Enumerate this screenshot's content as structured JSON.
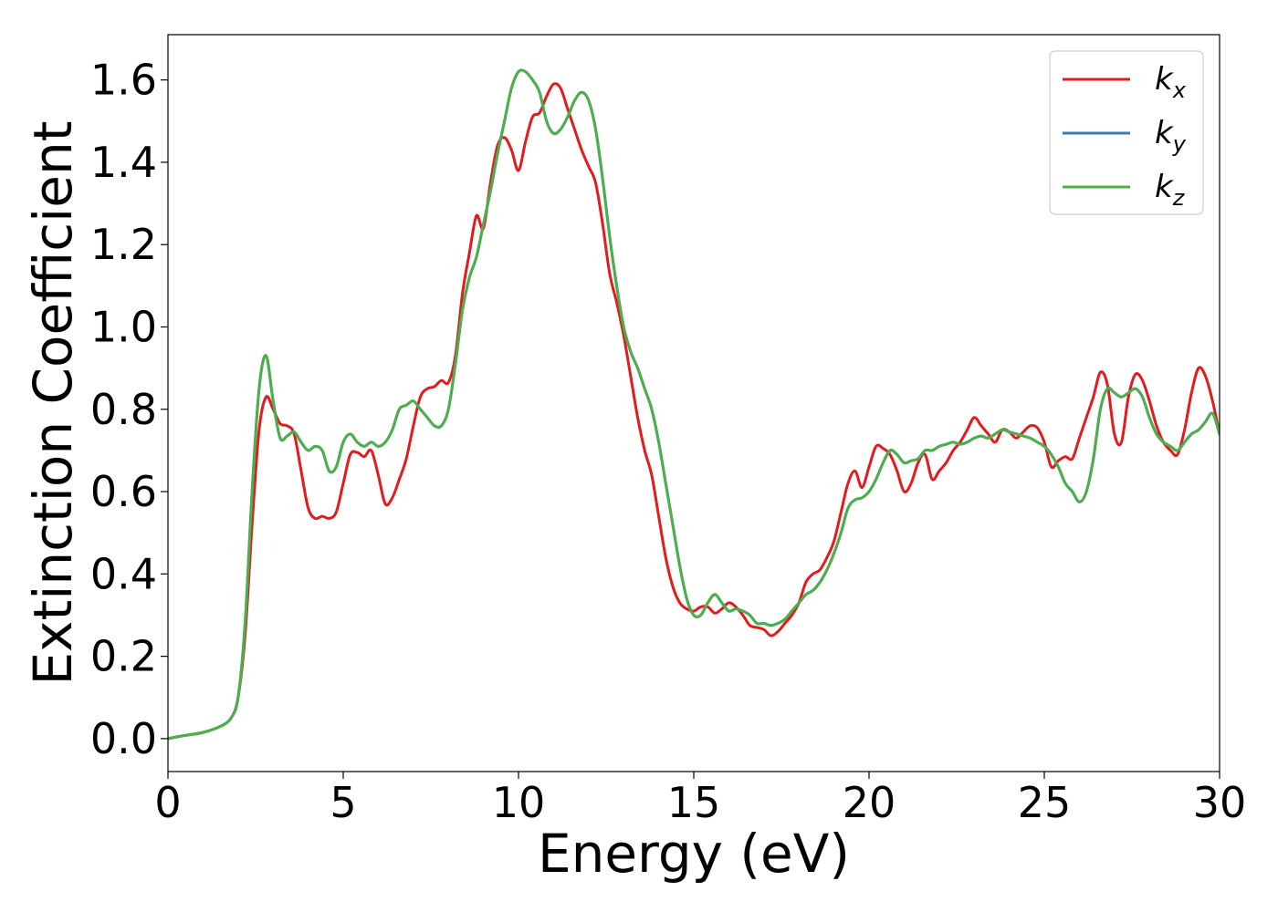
{
  "chart_data": {
    "type": "line",
    "xlabel": "Energy (eV)",
    "ylabel": "Extinction Coefficient",
    "xlim": [
      0,
      30
    ],
    "ylim": [
      -0.08,
      1.71
    ],
    "xticks": [
      0,
      5,
      10,
      15,
      20,
      25,
      30
    ],
    "yticks": [
      0.0,
      0.2,
      0.4,
      0.6,
      0.8,
      1.0,
      1.2,
      1.4,
      1.6
    ],
    "xtick_labels": [
      "0",
      "5",
      "10",
      "15",
      "20",
      "25",
      "30"
    ],
    "ytick_labels": [
      "0.0",
      "0.2",
      "0.4",
      "0.6",
      "0.8",
      "1.0",
      "1.2",
      "1.4",
      "1.6"
    ],
    "grid": false,
    "legend_position": "top-right",
    "series": [
      {
        "name": "k_x",
        "label_base": "k",
        "label_sub": "x",
        "color": "#e41a1c",
        "x": [
          0,
          0.5,
          1,
          1.5,
          1.8,
          2,
          2.2,
          2.4,
          2.6,
          2.8,
          3.0,
          3.2,
          3.4,
          3.6,
          3.8,
          4.0,
          4.2,
          4.4,
          4.6,
          4.8,
          5.0,
          5.2,
          5.4,
          5.6,
          5.8,
          6.0,
          6.2,
          6.4,
          6.6,
          6.8,
          7.0,
          7.2,
          7.4,
          7.6,
          7.8,
          8.0,
          8.2,
          8.4,
          8.6,
          8.8,
          9.0,
          9.2,
          9.4,
          9.6,
          9.8,
          10.0,
          10.2,
          10.4,
          10.6,
          10.8,
          11.0,
          11.2,
          11.4,
          11.6,
          11.8,
          12.0,
          12.2,
          12.4,
          12.6,
          12.8,
          13.0,
          13.2,
          13.4,
          13.6,
          13.8,
          14.0,
          14.2,
          14.4,
          14.6,
          14.8,
          15.0,
          15.2,
          15.4,
          15.6,
          15.8,
          16.0,
          16.2,
          16.4,
          16.6,
          16.8,
          17.0,
          17.2,
          17.4,
          17.6,
          17.8,
          18.0,
          18.2,
          18.4,
          18.6,
          18.8,
          19.0,
          19.2,
          19.4,
          19.6,
          19.8,
          20.0,
          20.2,
          20.4,
          20.6,
          20.8,
          21.0,
          21.2,
          21.4,
          21.6,
          21.8,
          22.0,
          22.2,
          22.4,
          22.6,
          22.8,
          23.0,
          23.2,
          23.4,
          23.6,
          23.8,
          24.0,
          24.2,
          24.4,
          24.6,
          24.8,
          25.0,
          25.2,
          25.4,
          25.6,
          25.8,
          26.0,
          26.2,
          26.4,
          26.6,
          26.8,
          27.0,
          27.2,
          27.4,
          27.6,
          27.8,
          28.0,
          28.2,
          28.4,
          28.6,
          28.8,
          29.0,
          29.2,
          29.4,
          29.6,
          29.8,
          30.0
        ],
        "values": [
          0.0,
          0.008,
          0.015,
          0.03,
          0.05,
          0.1,
          0.25,
          0.52,
          0.75,
          0.83,
          0.8,
          0.765,
          0.76,
          0.74,
          0.65,
          0.56,
          0.535,
          0.54,
          0.535,
          0.55,
          0.62,
          0.69,
          0.695,
          0.685,
          0.7,
          0.64,
          0.57,
          0.585,
          0.63,
          0.68,
          0.76,
          0.83,
          0.85,
          0.855,
          0.87,
          0.865,
          0.93,
          1.08,
          1.18,
          1.27,
          1.24,
          1.35,
          1.44,
          1.46,
          1.43,
          1.38,
          1.45,
          1.51,
          1.52,
          1.56,
          1.59,
          1.58,
          1.53,
          1.48,
          1.43,
          1.39,
          1.35,
          1.25,
          1.13,
          1.06,
          0.98,
          0.88,
          0.78,
          0.7,
          0.64,
          0.54,
          0.44,
          0.37,
          0.33,
          0.315,
          0.31,
          0.32,
          0.32,
          0.305,
          0.315,
          0.33,
          0.32,
          0.3,
          0.275,
          0.27,
          0.265,
          0.25,
          0.26,
          0.28,
          0.3,
          0.33,
          0.38,
          0.4,
          0.41,
          0.44,
          0.48,
          0.55,
          0.62,
          0.65,
          0.61,
          0.66,
          0.71,
          0.705,
          0.69,
          0.65,
          0.6,
          0.62,
          0.67,
          0.69,
          0.63,
          0.65,
          0.67,
          0.7,
          0.72,
          0.75,
          0.78,
          0.76,
          0.74,
          0.72,
          0.75,
          0.745,
          0.73,
          0.745,
          0.76,
          0.755,
          0.72,
          0.66,
          0.675,
          0.685,
          0.68,
          0.73,
          0.78,
          0.83,
          0.89,
          0.86,
          0.74,
          0.72,
          0.83,
          0.885,
          0.87,
          0.82,
          0.76,
          0.72,
          0.7,
          0.69,
          0.75,
          0.84,
          0.9,
          0.88,
          0.82,
          0.74
        ]
      },
      {
        "name": "k_y",
        "label_base": "k",
        "label_sub": "y",
        "color": "#377eb8",
        "x": [
          0,
          0.5,
          1,
          1.5,
          1.8,
          2,
          2.2,
          2.4,
          2.6,
          2.8,
          3.0,
          3.2,
          3.4,
          3.6,
          3.8,
          4.0,
          4.2,
          4.4,
          4.6,
          4.8,
          5.0,
          5.2,
          5.4,
          5.6,
          5.8,
          6.0,
          6.2,
          6.4,
          6.6,
          6.8,
          7.0,
          7.2,
          7.4,
          7.6,
          7.8,
          8.0,
          8.2,
          8.4,
          8.6,
          8.8,
          9.0,
          9.2,
          9.4,
          9.6,
          9.8,
          10.0,
          10.2,
          10.4,
          10.6,
          10.8,
          11.0,
          11.2,
          11.4,
          11.6,
          11.8,
          12.0,
          12.2,
          12.4,
          12.6,
          12.8,
          13.0,
          13.2,
          13.4,
          13.6,
          13.8,
          14.0,
          14.2,
          14.4,
          14.6,
          14.8,
          15.0,
          15.2,
          15.4,
          15.6,
          15.8,
          16.0,
          16.2,
          16.4,
          16.6,
          16.8,
          17.0,
          17.2,
          17.4,
          17.6,
          17.8,
          18.0,
          18.2,
          18.4,
          18.6,
          18.8,
          19.0,
          19.2,
          19.4,
          19.6,
          19.8,
          20.0,
          20.2,
          20.4,
          20.6,
          20.8,
          21.0,
          21.2,
          21.4,
          21.6,
          21.8,
          22.0,
          22.2,
          22.4,
          22.6,
          22.8,
          23.0,
          23.2,
          23.4,
          23.6,
          23.8,
          24.0,
          24.2,
          24.4,
          24.6,
          24.8,
          25.0,
          25.2,
          25.4,
          25.6,
          25.8,
          26.0,
          26.2,
          26.4,
          26.6,
          26.8,
          27.0,
          27.2,
          27.4,
          27.6,
          27.8,
          28.0,
          28.2,
          28.4,
          28.6,
          28.8,
          29.0,
          29.2,
          29.4,
          29.6,
          29.8,
          30.0
        ],
        "values": [
          0.0,
          0.008,
          0.015,
          0.03,
          0.05,
          0.1,
          0.28,
          0.6,
          0.85,
          0.93,
          0.82,
          0.73,
          0.735,
          0.745,
          0.72,
          0.7,
          0.71,
          0.7,
          0.65,
          0.66,
          0.72,
          0.74,
          0.72,
          0.71,
          0.72,
          0.71,
          0.72,
          0.75,
          0.8,
          0.81,
          0.82,
          0.8,
          0.78,
          0.76,
          0.76,
          0.8,
          0.91,
          1.04,
          1.12,
          1.17,
          1.25,
          1.33,
          1.42,
          1.5,
          1.58,
          1.62,
          1.62,
          1.6,
          1.57,
          1.5,
          1.47,
          1.48,
          1.51,
          1.55,
          1.57,
          1.55,
          1.48,
          1.36,
          1.22,
          1.1,
          1.0,
          0.94,
          0.9,
          0.85,
          0.8,
          0.72,
          0.62,
          0.52,
          0.42,
          0.34,
          0.3,
          0.3,
          0.33,
          0.35,
          0.33,
          0.31,
          0.315,
          0.31,
          0.3,
          0.28,
          0.28,
          0.275,
          0.28,
          0.29,
          0.31,
          0.33,
          0.35,
          0.36,
          0.38,
          0.41,
          0.45,
          0.5,
          0.56,
          0.58,
          0.585,
          0.6,
          0.63,
          0.67,
          0.7,
          0.69,
          0.67,
          0.675,
          0.68,
          0.7,
          0.7,
          0.71,
          0.715,
          0.72,
          0.715,
          0.72,
          0.73,
          0.735,
          0.73,
          0.74,
          0.75,
          0.745,
          0.74,
          0.735,
          0.73,
          0.72,
          0.71,
          0.69,
          0.66,
          0.62,
          0.6,
          0.575,
          0.6,
          0.68,
          0.8,
          0.85,
          0.84,
          0.83,
          0.84,
          0.85,
          0.83,
          0.78,
          0.74,
          0.72,
          0.71,
          0.7,
          0.72,
          0.74,
          0.75,
          0.77,
          0.79,
          0.74
        ]
      },
      {
        "name": "k_z",
        "label_base": "k",
        "label_sub": "z",
        "color": "#4daf4a",
        "x": [
          0,
          0.5,
          1,
          1.5,
          1.8,
          2,
          2.2,
          2.4,
          2.6,
          2.8,
          3.0,
          3.2,
          3.4,
          3.6,
          3.8,
          4.0,
          4.2,
          4.4,
          4.6,
          4.8,
          5.0,
          5.2,
          5.4,
          5.6,
          5.8,
          6.0,
          6.2,
          6.4,
          6.6,
          6.8,
          7.0,
          7.2,
          7.4,
          7.6,
          7.8,
          8.0,
          8.2,
          8.4,
          8.6,
          8.8,
          9.0,
          9.2,
          9.4,
          9.6,
          9.8,
          10.0,
          10.2,
          10.4,
          10.6,
          10.8,
          11.0,
          11.2,
          11.4,
          11.6,
          11.8,
          12.0,
          12.2,
          12.4,
          12.6,
          12.8,
          13.0,
          13.2,
          13.4,
          13.6,
          13.8,
          14.0,
          14.2,
          14.4,
          14.6,
          14.8,
          15.0,
          15.2,
          15.4,
          15.6,
          15.8,
          16.0,
          16.2,
          16.4,
          16.6,
          16.8,
          17.0,
          17.2,
          17.4,
          17.6,
          17.8,
          18.0,
          18.2,
          18.4,
          18.6,
          18.8,
          19.0,
          19.2,
          19.4,
          19.6,
          19.8,
          20.0,
          20.2,
          20.4,
          20.6,
          20.8,
          21.0,
          21.2,
          21.4,
          21.6,
          21.8,
          22.0,
          22.2,
          22.4,
          22.6,
          22.8,
          23.0,
          23.2,
          23.4,
          23.6,
          23.8,
          24.0,
          24.2,
          24.4,
          24.6,
          24.8,
          25.0,
          25.2,
          25.4,
          25.6,
          25.8,
          26.0,
          26.2,
          26.4,
          26.6,
          26.8,
          27.0,
          27.2,
          27.4,
          27.6,
          27.8,
          28.0,
          28.2,
          28.4,
          28.6,
          28.8,
          29.0,
          29.2,
          29.4,
          29.6,
          29.8,
          30.0
        ],
        "values": [
          0.0,
          0.008,
          0.015,
          0.03,
          0.05,
          0.1,
          0.28,
          0.6,
          0.85,
          0.93,
          0.82,
          0.73,
          0.735,
          0.745,
          0.72,
          0.7,
          0.71,
          0.7,
          0.65,
          0.66,
          0.72,
          0.74,
          0.72,
          0.71,
          0.72,
          0.71,
          0.72,
          0.75,
          0.8,
          0.81,
          0.82,
          0.8,
          0.78,
          0.76,
          0.76,
          0.8,
          0.91,
          1.04,
          1.12,
          1.17,
          1.25,
          1.33,
          1.42,
          1.5,
          1.58,
          1.62,
          1.62,
          1.6,
          1.57,
          1.5,
          1.47,
          1.48,
          1.51,
          1.55,
          1.57,
          1.55,
          1.48,
          1.36,
          1.22,
          1.1,
          1.0,
          0.94,
          0.9,
          0.85,
          0.8,
          0.72,
          0.62,
          0.52,
          0.42,
          0.34,
          0.3,
          0.3,
          0.33,
          0.35,
          0.33,
          0.31,
          0.315,
          0.31,
          0.3,
          0.28,
          0.28,
          0.275,
          0.28,
          0.29,
          0.31,
          0.33,
          0.35,
          0.36,
          0.38,
          0.41,
          0.45,
          0.5,
          0.56,
          0.58,
          0.585,
          0.6,
          0.63,
          0.67,
          0.7,
          0.69,
          0.67,
          0.675,
          0.68,
          0.7,
          0.7,
          0.71,
          0.715,
          0.72,
          0.715,
          0.72,
          0.73,
          0.735,
          0.73,
          0.74,
          0.75,
          0.745,
          0.74,
          0.735,
          0.73,
          0.72,
          0.71,
          0.69,
          0.66,
          0.62,
          0.6,
          0.575,
          0.6,
          0.68,
          0.8,
          0.85,
          0.84,
          0.83,
          0.84,
          0.85,
          0.83,
          0.78,
          0.74,
          0.72,
          0.71,
          0.7,
          0.72,
          0.74,
          0.75,
          0.77,
          0.79,
          0.74
        ]
      }
    ]
  }
}
